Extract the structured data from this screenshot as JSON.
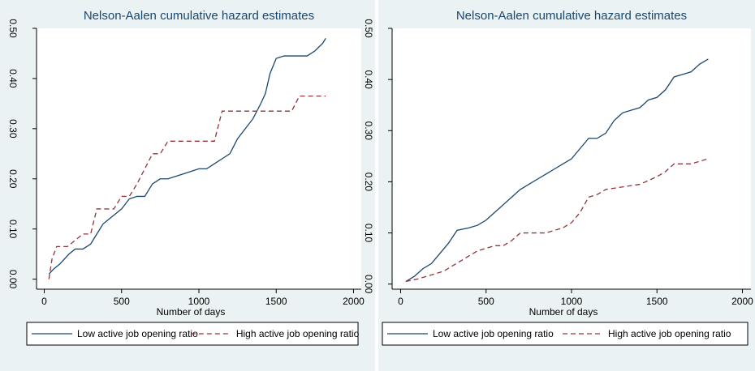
{
  "chart_data": [
    {
      "type": "line",
      "title": "Nelson-Aalen cumulative hazard estimates",
      "xlabel": "Number of days",
      "xlim": [
        -50,
        2050
      ],
      "xticks": [
        0,
        500,
        1000,
        1500,
        2000
      ],
      "ylim": [
        -0.02,
        0.5
      ],
      "yticks": [
        {
          "value": 0,
          "label": "0.00"
        },
        {
          "value": 0.1,
          "label": "0.10"
        },
        {
          "value": 0.2,
          "label": "0.20"
        },
        {
          "value": 0.3,
          "label": "0.30"
        },
        {
          "value": 0.4,
          "label": "0.40"
        },
        {
          "value": 0.5,
          "label": "0.50"
        }
      ],
      "series": [
        {
          "name": "Low active job opening ratio",
          "color": "#1a476f",
          "dash": "none",
          "x": [
            30,
            60,
            100,
            130,
            160,
            200,
            250,
            300,
            340,
            380,
            420,
            460,
            500,
            550,
            600,
            650,
            700,
            750,
            800,
            900,
            1000,
            1050,
            1100,
            1150,
            1200,
            1250,
            1300,
            1350,
            1400,
            1430,
            1460,
            1500,
            1550,
            1600,
            1700,
            1750,
            1800,
            1820
          ],
          "values": [
            0.01,
            0.02,
            0.03,
            0.04,
            0.05,
            0.06,
            0.06,
            0.07,
            0.09,
            0.11,
            0.12,
            0.13,
            0.14,
            0.16,
            0.165,
            0.165,
            0.19,
            0.2,
            0.2,
            0.21,
            0.22,
            0.22,
            0.23,
            0.24,
            0.25,
            0.28,
            0.3,
            0.32,
            0.35,
            0.37,
            0.41,
            0.44,
            0.445,
            0.445,
            0.445,
            0.455,
            0.47,
            0.48
          ]
        },
        {
          "name": "High active job opening ratio",
          "color": "#90353b",
          "dash": "6 4",
          "x": [
            30,
            50,
            80,
            150,
            250,
            300,
            340,
            400,
            450,
            500,
            550,
            600,
            650,
            700,
            750,
            800,
            900,
            1000,
            1100,
            1150,
            1200,
            1300,
            1400,
            1500,
            1600,
            1650,
            1700,
            1820
          ],
          "values": [
            0.0,
            0.04,
            0.065,
            0.065,
            0.09,
            0.09,
            0.14,
            0.14,
            0.14,
            0.165,
            0.165,
            0.19,
            0.22,
            0.25,
            0.25,
            0.275,
            0.275,
            0.275,
            0.275,
            0.335,
            0.335,
            0.335,
            0.335,
            0.335,
            0.335,
            0.365,
            0.365,
            0.365
          ]
        }
      ]
    },
    {
      "type": "line",
      "title": "Nelson-Aalen cumulative hazard estimates",
      "xlabel": "Number of days",
      "xlim": [
        -50,
        2050
      ],
      "xticks": [
        0,
        500,
        1000,
        1500,
        2000
      ],
      "ylim": [
        -0.01,
        0.5
      ],
      "yticks": [
        {
          "value": 0,
          "label": "0.00"
        },
        {
          "value": 0.1,
          "label": "0.10"
        },
        {
          "value": 0.2,
          "label": "0.20"
        },
        {
          "value": 0.3,
          "label": "0.30"
        },
        {
          "value": 0.4,
          "label": "0.40"
        },
        {
          "value": 0.5,
          "label": "0.50"
        }
      ],
      "series": [
        {
          "name": "Low active job opening ratio",
          "color": "#1a476f",
          "dash": "none",
          "x": [
            30,
            80,
            130,
            180,
            230,
            280,
            330,
            400,
            450,
            500,
            550,
            600,
            650,
            700,
            750,
            800,
            850,
            900,
            950,
            1000,
            1050,
            1100,
            1150,
            1200,
            1250,
            1300,
            1350,
            1400,
            1450,
            1500,
            1550,
            1600,
            1650,
            1700,
            1750,
            1800
          ],
          "values": [
            0.005,
            0.015,
            0.03,
            0.04,
            0.06,
            0.08,
            0.105,
            0.11,
            0.115,
            0.125,
            0.14,
            0.155,
            0.17,
            0.185,
            0.195,
            0.205,
            0.215,
            0.225,
            0.235,
            0.245,
            0.265,
            0.285,
            0.285,
            0.295,
            0.32,
            0.335,
            0.34,
            0.345,
            0.36,
            0.365,
            0.38,
            0.405,
            0.41,
            0.415,
            0.43,
            0.44
          ]
        },
        {
          "name": "High active job opening ratio",
          "color": "#90353b",
          "dash": "6 4",
          "x": [
            30,
            100,
            150,
            200,
            250,
            300,
            350,
            400,
            450,
            500,
            550,
            600,
            650,
            700,
            750,
            800,
            850,
            900,
            950,
            1000,
            1050,
            1100,
            1150,
            1200,
            1300,
            1400,
            1500,
            1550,
            1600,
            1700,
            1800
          ],
          "values": [
            0.005,
            0.01,
            0.015,
            0.02,
            0.025,
            0.035,
            0.045,
            0.055,
            0.065,
            0.07,
            0.075,
            0.075,
            0.085,
            0.1,
            0.1,
            0.1,
            0.1,
            0.105,
            0.11,
            0.12,
            0.14,
            0.17,
            0.175,
            0.185,
            0.19,
            0.195,
            0.21,
            0.22,
            0.235,
            0.235,
            0.245
          ]
        }
      ]
    }
  ]
}
